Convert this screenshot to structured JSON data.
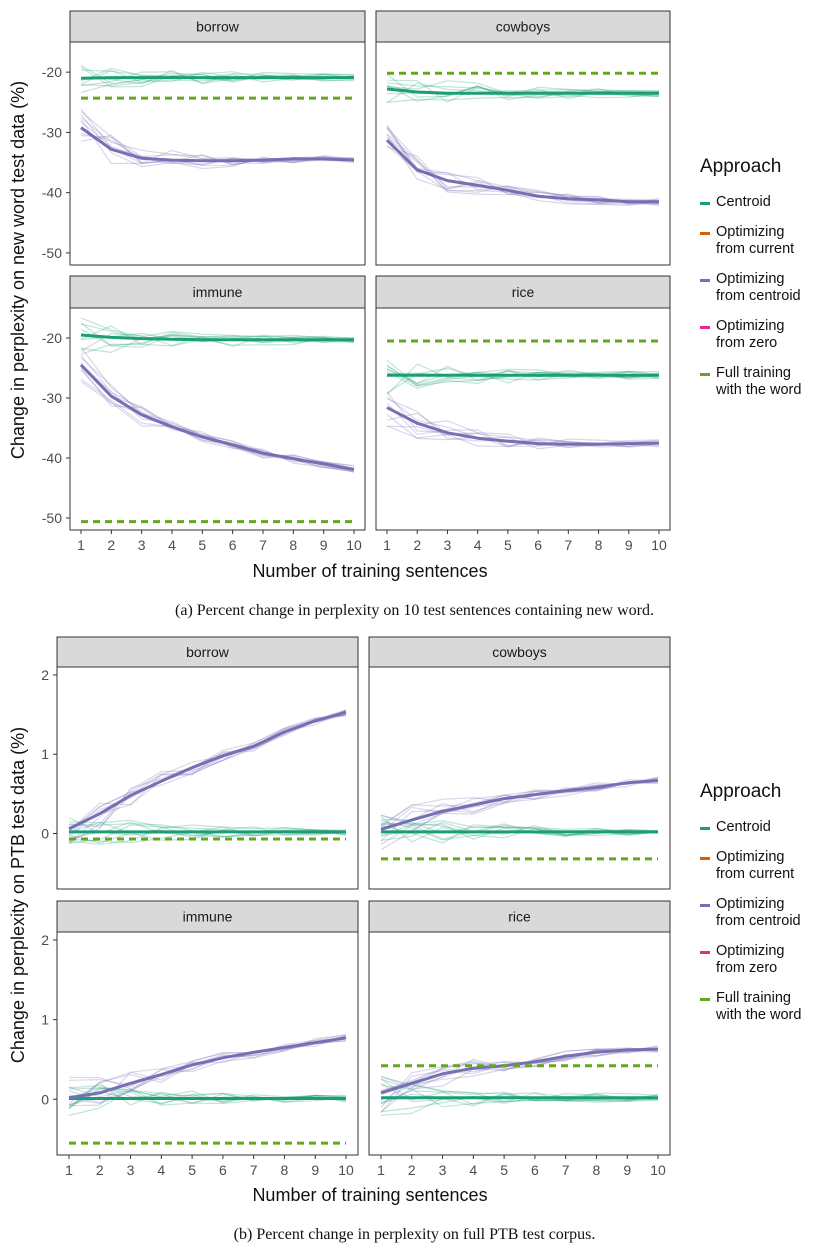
{
  "legend": {
    "title": "Approach",
    "items": [
      {
        "label": "Centroid",
        "color": "#1b9e77"
      },
      {
        "label": "Optimizing\nfrom current",
        "color": "#d95f02"
      },
      {
        "label": "Optimizing\nfrom centroid",
        "color": "#7570b3"
      },
      {
        "label": "Optimizing\nfrom zero",
        "color": "#e7298a"
      },
      {
        "label": "Full training\nwith the word",
        "color": "#66a61e"
      }
    ]
  },
  "captions": {
    "a": "(a) Percent change in perplexity on 10 test sentences containing new word.",
    "b": "(b) Percent change in perplexity on full PTB test corpus."
  },
  "chart_data": [
    {
      "type": "line",
      "id": "a",
      "xlabel": "Number of training sentences",
      "ylabel": "Change in perplexity on new word test data (%)",
      "x": [
        1,
        2,
        3,
        4,
        5,
        6,
        7,
        8,
        9,
        10
      ],
      "xticks": [
        1,
        2,
        3,
        4,
        5,
        6,
        7,
        8,
        9,
        10
      ],
      "ylim": [
        -52,
        -15
      ],
      "yticks": [
        -20,
        -30,
        -40,
        -50
      ],
      "facets": [
        {
          "name": "borrow",
          "series": [
            {
              "name": "Centroid",
              "values": [
                -21.0,
                -20.9,
                -20.9,
                -20.9,
                -20.9,
                -20.9,
                -20.9,
                -20.9,
                -20.9,
                -20.9
              ]
            },
            {
              "name": "Optimizing from centroid",
              "values": [
                -29.2,
                -32.8,
                -34.3,
                -34.6,
                -34.7,
                -34.7,
                -34.6,
                -34.4,
                -34.4,
                -34.6
              ]
            },
            {
              "name": "Full training with the word",
              "values": [
                -24.3,
                -24.3,
                -24.3,
                -24.3,
                -24.3,
                -24.3,
                -24.3,
                -24.3,
                -24.3,
                -24.3
              ]
            }
          ]
        },
        {
          "name": "cowboys",
          "series": [
            {
              "name": "Centroid",
              "values": [
                -22.8,
                -23.3,
                -23.5,
                -23.5,
                -23.5,
                -23.5,
                -23.5,
                -23.5,
                -23.5,
                -23.5
              ]
            },
            {
              "name": "Optimizing from centroid",
              "values": [
                -31.3,
                -36.2,
                -38.0,
                -38.8,
                -39.6,
                -40.6,
                -41.0,
                -41.2,
                -41.5,
                -41.5
              ]
            },
            {
              "name": "Full training with the word",
              "values": [
                -20.2,
                -20.2,
                -20.2,
                -20.2,
                -20.2,
                -20.2,
                -20.2,
                -20.2,
                -20.2,
                -20.2
              ]
            }
          ]
        },
        {
          "name": "immune",
          "series": [
            {
              "name": "Centroid",
              "values": [
                -19.5,
                -19.9,
                -20.1,
                -20.2,
                -20.3,
                -20.3,
                -20.3,
                -20.3,
                -20.3,
                -20.3
              ]
            },
            {
              "name": "Optimizing from centroid",
              "values": [
                -24.5,
                -29.7,
                -32.8,
                -34.8,
                -36.5,
                -37.8,
                -39.2,
                -40.1,
                -41.0,
                -41.9
              ]
            },
            {
              "name": "Full training with the word",
              "values": [
                -50.6,
                -50.6,
                -50.6,
                -50.6,
                -50.6,
                -50.6,
                -50.6,
                -50.6,
                -50.6,
                -50.6
              ]
            }
          ]
        },
        {
          "name": "rice",
          "series": [
            {
              "name": "Centroid",
              "values": [
                -26.2,
                -26.2,
                -26.2,
                -26.2,
                -26.2,
                -26.2,
                -26.2,
                -26.2,
                -26.2,
                -26.2
              ]
            },
            {
              "name": "Optimizing from centroid",
              "values": [
                -31.6,
                -34.2,
                -35.8,
                -36.7,
                -37.2,
                -37.6,
                -37.7,
                -37.7,
                -37.6,
                -37.5
              ]
            },
            {
              "name": "Full training with the word",
              "values": [
                -20.5,
                -20.5,
                -20.5,
                -20.5,
                -20.5,
                -20.5,
                -20.5,
                -20.5,
                -20.5,
                -20.5
              ]
            }
          ]
        }
      ]
    },
    {
      "type": "line",
      "id": "b",
      "xlabel": "Number of training sentences",
      "ylabel": "Change in perplexity on PTB test data (%)",
      "x": [
        1,
        2,
        3,
        4,
        5,
        6,
        7,
        8,
        9,
        10
      ],
      "xticks": [
        1,
        2,
        3,
        4,
        5,
        6,
        7,
        8,
        9,
        10
      ],
      "ylim": [
        -0.7,
        2.1
      ],
      "yticks": [
        2,
        1,
        0
      ],
      "facets": [
        {
          "name": "borrow",
          "series": [
            {
              "name": "Centroid",
              "values": [
                0.02,
                0.02,
                0.02,
                0.02,
                0.02,
                0.02,
                0.02,
                0.02,
                0.02,
                0.02
              ]
            },
            {
              "name": "Optimizing from centroid",
              "values": [
                0.06,
                0.25,
                0.48,
                0.66,
                0.83,
                0.98,
                1.1,
                1.28,
                1.42,
                1.53
              ]
            },
            {
              "name": "Full training with the word",
              "values": [
                -0.07,
                -0.07,
                -0.07,
                -0.07,
                -0.07,
                -0.07,
                -0.07,
                -0.07,
                -0.07,
                -0.07
              ]
            }
          ]
        },
        {
          "name": "cowboys",
          "series": [
            {
              "name": "Centroid",
              "values": [
                0.02,
                0.02,
                0.02,
                0.02,
                0.02,
                0.02,
                0.02,
                0.02,
                0.02,
                0.02
              ]
            },
            {
              "name": "Optimizing from centroid",
              "values": [
                0.05,
                0.17,
                0.28,
                0.36,
                0.44,
                0.49,
                0.54,
                0.58,
                0.64,
                0.67
              ]
            },
            {
              "name": "Full training with the word",
              "values": [
                -0.32,
                -0.32,
                -0.32,
                -0.32,
                -0.32,
                -0.32,
                -0.32,
                -0.32,
                -0.32,
                -0.32
              ]
            }
          ]
        },
        {
          "name": "immune",
          "series": [
            {
              "name": "Centroid",
              "values": [
                0.01,
                0.01,
                0.01,
                0.01,
                0.01,
                0.01,
                0.01,
                0.01,
                0.01,
                0.01
              ]
            },
            {
              "name": "Optimizing from centroid",
              "values": [
                0.02,
                0.08,
                0.2,
                0.31,
                0.43,
                0.52,
                0.59,
                0.65,
                0.71,
                0.77
              ]
            },
            {
              "name": "Full training with the word",
              "values": [
                -0.55,
                -0.55,
                -0.55,
                -0.55,
                -0.55,
                -0.55,
                -0.55,
                -0.55,
                -0.55,
                -0.55
              ]
            }
          ]
        },
        {
          "name": "rice",
          "series": [
            {
              "name": "Centroid",
              "values": [
                0.02,
                0.02,
                0.02,
                0.02,
                0.02,
                0.02,
                0.02,
                0.02,
                0.02,
                0.02
              ]
            },
            {
              "name": "Optimizing from centroid",
              "values": [
                0.08,
                0.2,
                0.32,
                0.39,
                0.42,
                0.47,
                0.54,
                0.59,
                0.62,
                0.63
              ]
            },
            {
              "name": "Full training with the word",
              "values": [
                0.42,
                0.42,
                0.42,
                0.42,
                0.42,
                0.42,
                0.42,
                0.42,
                0.42,
                0.42
              ]
            }
          ]
        }
      ]
    }
  ]
}
